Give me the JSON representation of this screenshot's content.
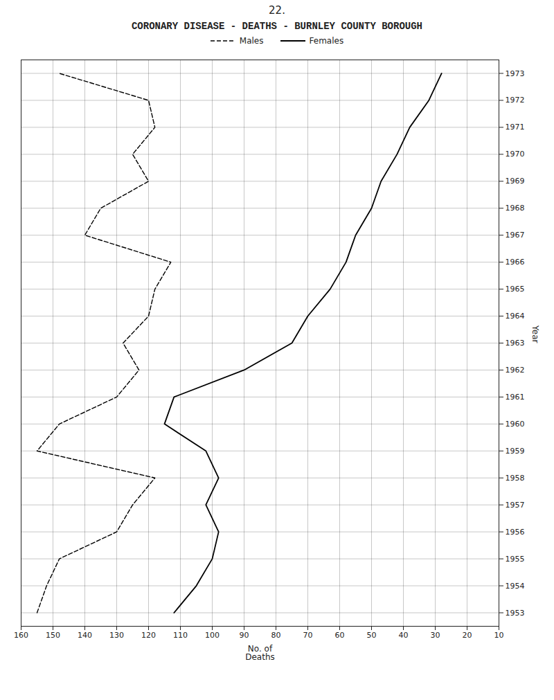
{
  "chart_data": {
    "type": "line",
    "title": "CORONARY DISEASE - DEATHS - BURNLEY COUNTY BOROUGH",
    "annotations": [
      "22."
    ],
    "xlabel": "No. of\nDeaths",
    "ylabel": "Year",
    "orientation": "horizontal",
    "y": [
      1953,
      1954,
      1955,
      1956,
      1957,
      1958,
      1959,
      1960,
      1961,
      1962,
      1963,
      1964,
      1965,
      1966,
      1967,
      1968,
      1969,
      1970,
      1971,
      1972,
      1973
    ],
    "series": [
      {
        "name": "Males",
        "color": "#000000",
        "line_style": "dashed",
        "values": [
          155,
          152,
          148,
          130,
          125,
          118,
          155,
          148,
          130,
          123,
          128,
          120,
          118,
          113,
          140,
          135,
          120,
          125,
          118,
          120,
          148
        ]
      },
      {
        "name": "Females",
        "color": "#000000",
        "line_style": "solid",
        "values": [
          112,
          105,
          100,
          98,
          102,
          98,
          102,
          115,
          112,
          90,
          75,
          70,
          63,
          58,
          55,
          50,
          47,
          42,
          38,
          32,
          28
        ]
      }
    ],
    "xlim": [
      160,
      10
    ],
    "ylim": [
      1952.5,
      1973.5
    ],
    "xticks": [
      160,
      150,
      140,
      130,
      120,
      110,
      100,
      90,
      80,
      70,
      60,
      50,
      40,
      30,
      20,
      10
    ],
    "yticks": [
      1953,
      1954,
      1955,
      1956,
      1957,
      1958,
      1959,
      1960,
      1961,
      1962,
      1963,
      1964,
      1965,
      1966,
      1967,
      1968,
      1969,
      1970,
      1971,
      1972,
      1973
    ],
    "grid": true,
    "legend": "top"
  }
}
